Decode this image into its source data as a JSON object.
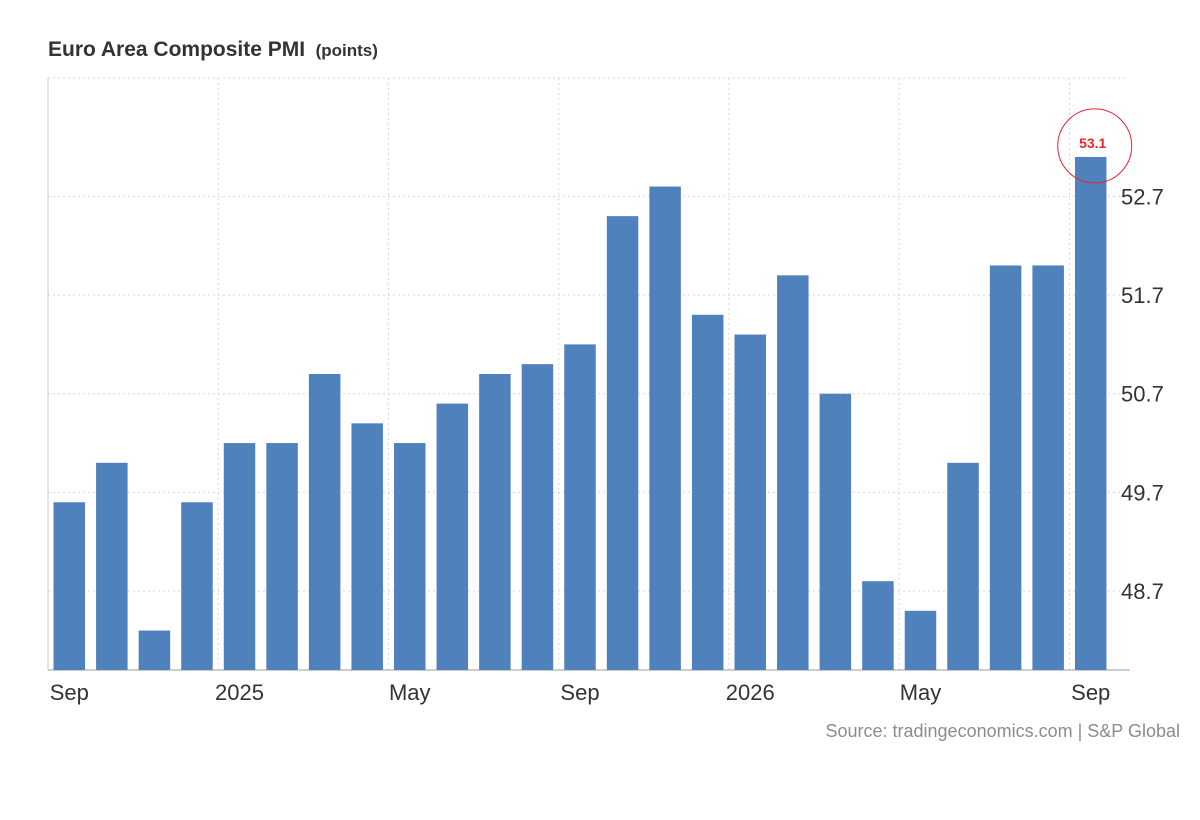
{
  "chart_data": {
    "type": "bar",
    "title": "Euro Area Composite PMI",
    "unit": "(points)",
    "categories": [
      "Sep 2024",
      "Oct 2024",
      "Nov 2024",
      "Dec 2024",
      "Jan 2025",
      "Feb 2025",
      "Mar 2025",
      "Apr 2025",
      "May 2025",
      "Jun 2025",
      "Jul 2025",
      "Aug 2025",
      "Sep 2025",
      "Oct 2025",
      "Nov 2025",
      "Dec 2025",
      "Jan 2026",
      "Feb 2026",
      "Mar 2026",
      "Apr 2026",
      "May 2026",
      "Jun 2026",
      "Jul 2026",
      "Aug 2026",
      "Sep 2026"
    ],
    "values": [
      49.6,
      50.0,
      48.3,
      49.6,
      50.2,
      50.2,
      50.9,
      50.4,
      50.2,
      50.6,
      50.9,
      51.0,
      51.2,
      52.5,
      52.8,
      51.5,
      51.3,
      51.9,
      50.7,
      48.8,
      48.5,
      50.0,
      52.0,
      52.0,
      53.1
    ],
    "x_tick_labels": [
      {
        "label": "Sep",
        "index": 0
      },
      {
        "label": "2025",
        "index": 4
      },
      {
        "label": "May",
        "index": 8
      },
      {
        "label": "Sep",
        "index": 12
      },
      {
        "label": "2026",
        "index": 16
      },
      {
        "label": "May",
        "index": 20
      },
      {
        "label": "Sep",
        "index": 24
      }
    ],
    "y_ticks": [
      48.7,
      49.7,
      50.7,
      51.7,
      52.7
    ],
    "y_tick_labels": [
      "48.7",
      "49.7",
      "50.7",
      "51.7",
      "52.7"
    ],
    "ylim": [
      47.9,
      53.9
    ],
    "y_axis_position": "right",
    "grid": true,
    "legend": "none",
    "bar_color": "#4f81bd",
    "annotation": {
      "label": "53.1",
      "index": 24,
      "color": "#e8242f"
    }
  },
  "source": "Source: tradingeconomics.com | S&P Global"
}
